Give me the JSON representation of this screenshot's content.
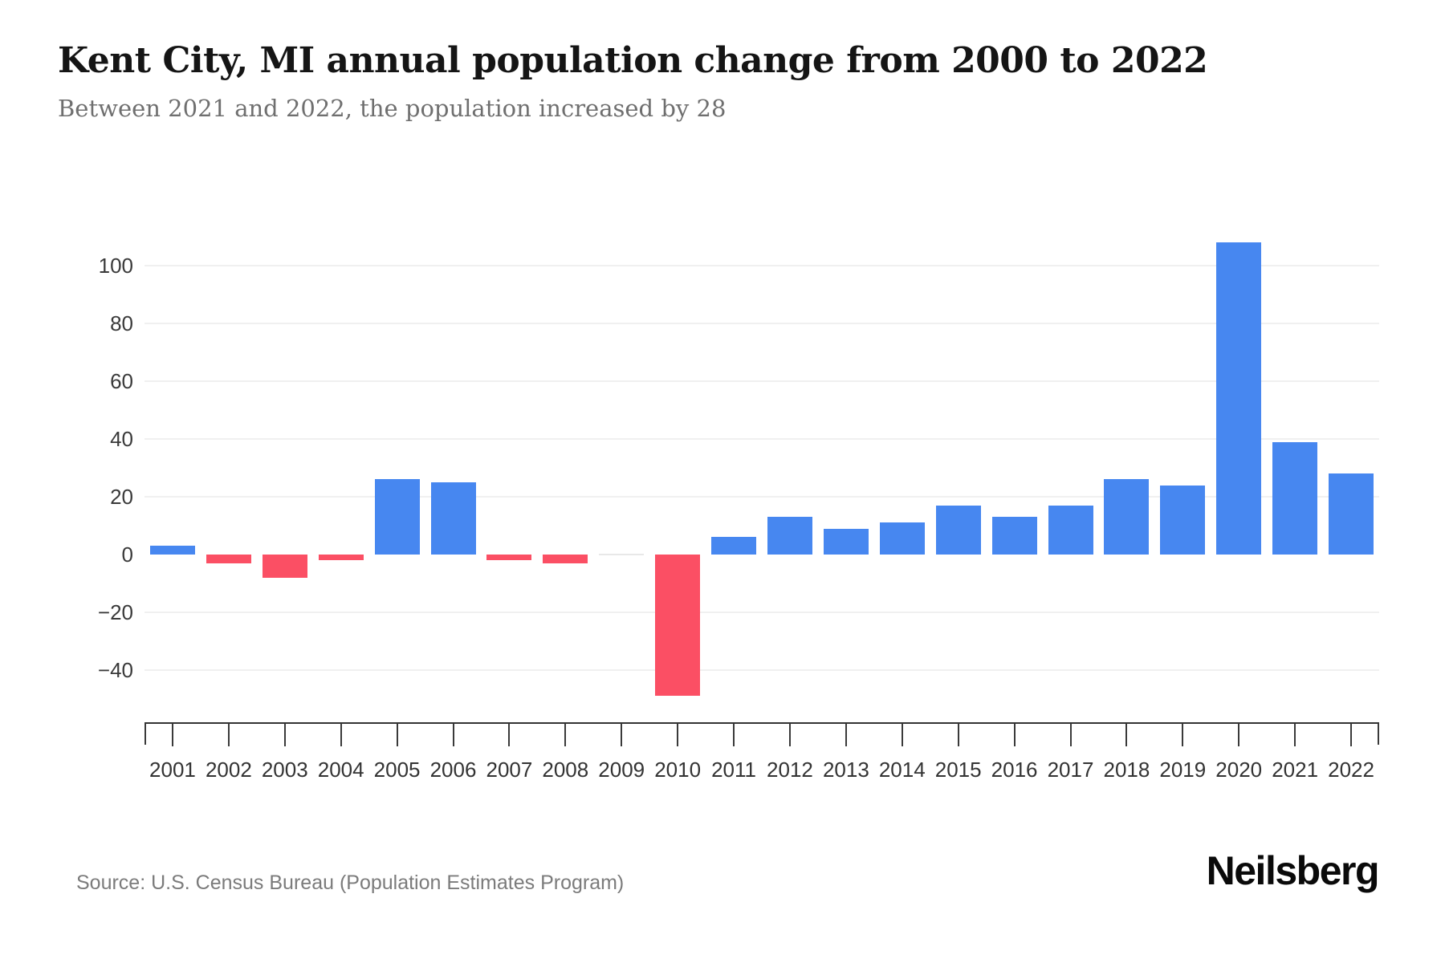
{
  "header": {
    "title": "Kent City, MI annual population change from 2000 to 2022",
    "subtitle": "Between 2021 and 2022, the population increased by 28"
  },
  "footer": {
    "source": "Source: U.S. Census Bureau (Population Estimates Program)",
    "brand": "Neilsberg"
  },
  "chart_data": {
    "type": "bar",
    "title": "Kent City, MI annual population change from 2000 to 2022",
    "subtitle": "Between 2021 and 2022, the population increased by 28",
    "categories": [
      "2001",
      "2002",
      "2003",
      "2004",
      "2005",
      "2006",
      "2007",
      "2008",
      "2009",
      "2010",
      "2011",
      "2012",
      "2013",
      "2014",
      "2015",
      "2016",
      "2017",
      "2018",
      "2019",
      "2020",
      "2021",
      "2022"
    ],
    "values": [
      3,
      -3,
      -8,
      -2,
      26,
      25,
      -2,
      -3,
      0,
      -49,
      6,
      13,
      9,
      11,
      17,
      13,
      17,
      26,
      24,
      108,
      39,
      28
    ],
    "xlabel": "",
    "ylabel": "",
    "ylim": [
      -58,
      114
    ],
    "yticks": [
      {
        "label": "100",
        "value": 100
      },
      {
        "label": "80",
        "value": 80
      },
      {
        "label": "60",
        "value": 60
      },
      {
        "label": "40",
        "value": 40
      },
      {
        "label": "20",
        "value": 20
      },
      {
        "label": "0",
        "value": 0
      },
      {
        "label": "−20",
        "value": -20
      },
      {
        "label": "−40",
        "value": -40
      }
    ],
    "grid": "horizontal",
    "legend": "none",
    "colors": {
      "positive": "#4787F0",
      "negative": "#FB4F64",
      "zero": "#e8e8e8"
    }
  }
}
